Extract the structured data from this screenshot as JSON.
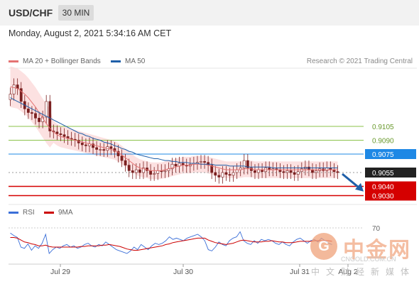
{
  "header": {
    "pair": "USD/CHF",
    "timeframe": "30 MIN",
    "datetime": "Monday, August 2, 2021 5:34:16 AM CET",
    "copyright": "Research © 2021 Trading Central"
  },
  "legend": {
    "ma20_label": "MA 20 + Bollinger Bands",
    "ma50_label": "MA 50",
    "rsi_label": "RSI",
    "ma9_label": "9MA"
  },
  "colors": {
    "ma20": "#e57373",
    "ma50": "#1f5fa8",
    "bollinger_fill": "#fbd7d7",
    "green_level": "#8bc34a",
    "blue_level": "#1e88e5",
    "red_level": "#d50000",
    "current_tag": "#222222",
    "candle": "#7b2020",
    "rsi": "#3b6fd8",
    "rsi_ma": "#cc0000"
  },
  "watermark": {
    "cn": "中金网",
    "en": "CNGOLD.COM.CN",
    "tag": "中文财经新媒体"
  },
  "chart_data": {
    "type": "candlestick",
    "title": "USD/CHF",
    "timeframe": "30 MIN",
    "x_ticks": [
      "Jul 29",
      "Jul 30",
      "Jul 31",
      "Aug 2"
    ],
    "price_levels": [
      {
        "value": 0.9105,
        "label": "0.9105",
        "kind": "resistance"
      },
      {
        "value": 0.909,
        "label": "0.9090",
        "kind": "resistance"
      },
      {
        "value": 0.9075,
        "label": "0.9075",
        "kind": "pivot"
      },
      {
        "value": 0.9055,
        "label": "0.9055",
        "kind": "current"
      },
      {
        "value": 0.904,
        "label": "0.9040",
        "kind": "support"
      },
      {
        "value": 0.903,
        "label": "0.9030",
        "kind": "support"
      }
    ],
    "y_range": [
      0.9025,
      0.9165
    ],
    "closes": [
      0.914,
      0.915,
      0.9146,
      0.9132,
      0.9124,
      0.912,
      0.9119,
      0.9114,
      0.911,
      0.9115,
      0.9132,
      0.91,
      0.9099,
      0.9097,
      0.9096,
      0.9094,
      0.9092,
      0.9091,
      0.909,
      0.9087,
      0.9085,
      0.9084,
      0.9086,
      0.9082,
      0.908,
      0.908,
      0.9079,
      0.9083,
      0.9081,
      0.9078,
      0.9073,
      0.9068,
      0.9063,
      0.9057,
      0.9055,
      0.9058,
      0.9055,
      0.906,
      0.9057,
      0.9053,
      0.9054,
      0.9057,
      0.9056,
      0.9057,
      0.9059,
      0.9064,
      0.9062,
      0.9065,
      0.9063,
      0.9062,
      0.9064,
      0.9065,
      0.9066,
      0.9067,
      0.9066,
      0.9063,
      0.9055,
      0.9052,
      0.905,
      0.9055,
      0.9053,
      0.9052,
      0.9055,
      0.9058,
      0.906,
      0.9068,
      0.906,
      0.9057,
      0.9055,
      0.9058,
      0.9056,
      0.906,
      0.9058,
      0.9059,
      0.9058,
      0.9056,
      0.9055,
      0.9057,
      0.9055,
      0.9053,
      0.9056,
      0.9059,
      0.9061,
      0.9058,
      0.9055,
      0.9057,
      0.9059,
      0.9057,
      0.906,
      0.9058,
      0.9056,
      0.9055
    ],
    "ma20": [
      0.9148,
      0.9147,
      0.9146,
      0.9143,
      0.914,
      0.9136,
      0.9131,
      0.9126,
      0.912,
      0.9114,
      0.9108,
      0.9103,
      0.9099,
      0.9096,
      0.9094,
      0.9093,
      0.9092,
      0.9091,
      0.909,
      0.9089,
      0.9088,
      0.9087,
      0.9086,
      0.9085,
      0.9084,
      0.9083,
      0.9082,
      0.9081,
      0.908,
      0.9079,
      0.9077,
      0.9074,
      0.9071,
      0.9068,
      0.9065,
      0.9062,
      0.906,
      0.9059,
      0.9058,
      0.9057,
      0.9057,
      0.9057,
      0.9057,
      0.9058,
      0.9059,
      0.906,
      0.9061,
      0.9062,
      0.9063,
      0.9063,
      0.9063,
      0.9064,
      0.9064,
      0.9064,
      0.9064,
      0.9063,
      0.9062,
      0.9061,
      0.906,
      0.9059,
      0.9058,
      0.9058,
      0.9058,
      0.9058,
      0.9058,
      0.9059,
      0.9059,
      0.9059,
      0.9058,
      0.9058,
      0.9058,
      0.9058,
      0.9058,
      0.9058,
      0.9058,
      0.9058,
      0.9058,
      0.9058,
      0.9058,
      0.9058,
      0.9058,
      0.9058,
      0.9058,
      0.9058,
      0.9058,
      0.9058,
      0.9058,
      0.9058,
      0.9058,
      0.9058,
      0.9058,
      0.9058
    ],
    "ma50": [
      0.9136,
      0.9134,
      0.9132,
      0.913,
      0.9128,
      0.9126,
      0.9124,
      0.9122,
      0.912,
      0.9118,
      0.9116,
      0.9114,
      0.9112,
      0.911,
      0.9108,
      0.9106,
      0.9104,
      0.9102,
      0.91,
      0.9098,
      0.9097,
      0.9095,
      0.9094,
      0.9092,
      0.9091,
      0.909,
      0.9088,
      0.9087,
      0.9086,
      0.9084,
      0.9083,
      0.9081,
      0.908,
      0.9078,
      0.9077,
      0.9075,
      0.9074,
      0.9073,
      0.9072,
      0.9071,
      0.907,
      0.907,
      0.9069,
      0.9068,
      0.9068,
      0.9067,
      0.9067,
      0.9066,
      0.9066,
      0.9066,
      0.9065,
      0.9065,
      0.9065,
      0.9064,
      0.9064,
      0.9064,
      0.9064,
      0.9063,
      0.9063,
      0.9063,
      0.9063,
      0.9062,
      0.9062,
      0.9062,
      0.9062,
      0.9062,
      0.9061,
      0.9061,
      0.9061,
      0.9061,
      0.9061,
      0.9061,
      0.9061,
      0.906,
      0.906,
      0.906,
      0.906,
      0.906,
      0.906,
      0.906,
      0.906,
      0.906,
      0.906,
      0.906,
      0.906,
      0.906,
      0.906,
      0.906,
      0.906,
      0.906,
      0.906,
      0.906
    ],
    "rsi_level": 70,
    "rsi_range": [
      20,
      80
    ],
    "rsi": [
      62,
      58,
      55,
      40,
      38,
      45,
      35,
      42,
      38,
      46,
      60,
      30,
      36,
      40,
      38,
      42,
      44,
      40,
      42,
      38,
      40,
      44,
      46,
      42,
      40,
      44,
      42,
      48,
      44,
      40,
      36,
      34,
      32,
      30,
      34,
      40,
      36,
      44,
      40,
      36,
      42,
      46,
      44,
      46,
      50,
      56,
      52,
      54,
      52,
      50,
      54,
      56,
      58,
      60,
      56,
      50,
      36,
      34,
      40,
      48,
      44,
      42,
      50,
      54,
      56,
      64,
      50,
      46,
      44,
      50,
      46,
      52,
      50,
      52,
      50,
      46,
      44,
      48,
      44,
      42,
      48,
      52,
      54,
      50,
      46,
      50,
      52,
      48,
      54,
      50,
      46,
      44
    ],
    "rsi_ma": [
      55,
      55,
      54,
      51,
      48,
      47,
      45,
      44,
      42,
      42,
      43,
      41,
      40,
      40,
      40,
      40,
      40,
      40,
      40,
      40,
      41,
      41,
      42,
      42,
      42,
      42,
      43,
      43,
      44,
      43,
      42,
      41,
      39,
      37,
      36,
      35,
      35,
      36,
      37,
      38,
      39,
      40,
      41,
      42,
      44,
      45,
      47,
      48,
      49,
      50,
      51,
      52,
      53,
      54,
      54,
      54,
      51,
      49,
      47,
      46,
      45,
      44,
      45,
      46,
      48,
      50,
      51,
      50,
      49,
      48,
      48,
      48,
      49,
      49,
      50,
      49,
      48,
      48,
      47,
      47,
      47,
      48,
      49,
      49,
      49,
      49,
      50,
      50,
      50,
      50,
      50,
      49
    ]
  }
}
